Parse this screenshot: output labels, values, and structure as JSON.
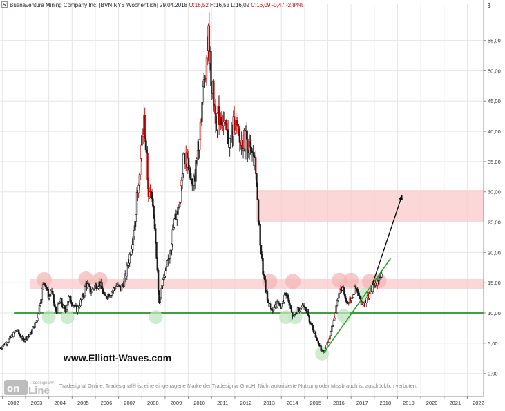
{
  "header": {
    "company": "Buenaventura Mining Company Inc.",
    "instrument": "[BVN NYS  Wöchentlich]",
    "date": "29.04.2018",
    "o_label": "O:",
    "o_value": "16,52",
    "h_label": "H:",
    "h_value": "16,53",
    "l_label": "L:",
    "l_value": "16,02",
    "c_label": "C:",
    "c_value": "16,09",
    "change": "-0,47",
    "change_pct": "-2,84%"
  },
  "watermark": {
    "url": "www.Elliott-Waves.com",
    "logo_top": "Tradesignal®",
    "logo_on": "on",
    "logo_line": "Line",
    "copyright": "Tradesignal Online. Tradesignal® ist eine eingetragene Marke der Tradesignal GmbH. Nicht autorisierte Nutzung oder Missbrauch ist ausdrücklich verboten."
  },
  "colors": {
    "candle": "#1a1a1a",
    "candle_highlight": "#b80000",
    "zone_fill": "#f9c9c9",
    "support_line": "#008000",
    "trendline": "#2aa52a",
    "marker_red": "#f4b4b4",
    "marker_green": "#bfe5bf",
    "arrow": "#000000",
    "text_red": "#d40000"
  },
  "chart_data": {
    "type": "candlestick",
    "title": "Buenaventura Mining Company Inc.",
    "currency_label": "$",
    "xlabel": "",
    "ylabel": "",
    "x_range": [
      2001.9,
      2022.7
    ],
    "ylim": [
      -3.8,
      61
    ],
    "grid": true,
    "y_ticks": [
      0,
      5,
      10,
      15,
      20,
      25,
      30,
      35,
      40,
      45,
      50,
      55
    ],
    "y_tick_labels": [
      "0,00",
      "5,00",
      "10,00",
      "15,00",
      "20,00",
      "25,00",
      "30,00",
      "35,00",
      "40,00",
      "45,00",
      "50,00",
      "55,00"
    ],
    "x_ticks": [
      2002,
      2003,
      2004,
      2005,
      2006,
      2007,
      2008,
      2009,
      2010,
      2011,
      2012,
      2013,
      2014,
      2015,
      2016,
      2017,
      2018,
      2019,
      2020,
      2021,
      2022
    ],
    "x_tick_labels": [
      "2002",
      "2003",
      "2004",
      "2005",
      "2006",
      "2007",
      "2008",
      "2009",
      "2010",
      "2011",
      "2012",
      "2013",
      "2014",
      "2015",
      "2016",
      "2017",
      "2018",
      "2019",
      "2020",
      "2021",
      "2022"
    ],
    "price_path": [
      [
        2001.9,
        4.2
      ],
      [
        2002.3,
        5.6
      ],
      [
        2002.6,
        7.2
      ],
      [
        2002.9,
        5.5
      ],
      [
        2003.2,
        6.5
      ],
      [
        2003.5,
        9.0
      ],
      [
        2003.7,
        13.5
      ],
      [
        2003.8,
        15.5
      ],
      [
        2004.0,
        12.5
      ],
      [
        2004.1,
        13.8
      ],
      [
        2004.3,
        10.0
      ],
      [
        2004.5,
        12.0
      ],
      [
        2004.7,
        10.2
      ],
      [
        2004.85,
        12.5
      ],
      [
        2005.0,
        11.8
      ],
      [
        2005.2,
        10.5
      ],
      [
        2005.5,
        13.0
      ],
      [
        2005.6,
        15.0
      ],
      [
        2005.8,
        13.5
      ],
      [
        2006.0,
        14.5
      ],
      [
        2006.2,
        15.0
      ],
      [
        2006.4,
        12.5
      ],
      [
        2006.7,
        13.5
      ],
      [
        2006.9,
        14.5
      ],
      [
        2007.1,
        14.0
      ],
      [
        2007.3,
        16.0
      ],
      [
        2007.5,
        20.0
      ],
      [
        2007.7,
        25.0
      ],
      [
        2007.85,
        32.0
      ],
      [
        2008.0,
        38.0
      ],
      [
        2008.1,
        42.0
      ],
      [
        2008.3,
        29.0
      ],
      [
        2008.45,
        30.0
      ],
      [
        2008.6,
        22.0
      ],
      [
        2008.75,
        11.0
      ],
      [
        2008.85,
        15.0
      ],
      [
        2009.0,
        16.0
      ],
      [
        2009.2,
        20.0
      ],
      [
        2009.4,
        25.0
      ],
      [
        2009.6,
        28.0
      ],
      [
        2009.8,
        36.0
      ],
      [
        2010.0,
        35.0
      ],
      [
        2010.2,
        30.0
      ],
      [
        2010.4,
        37.0
      ],
      [
        2010.6,
        45.0
      ],
      [
        2010.8,
        53.0
      ],
      [
        2010.85,
        56.0
      ],
      [
        2011.0,
        48.0
      ],
      [
        2011.2,
        42.0
      ],
      [
        2011.4,
        43.0
      ],
      [
        2011.6,
        40.0
      ],
      [
        2011.8,
        38.0
      ],
      [
        2012.0,
        42.0
      ],
      [
        2012.2,
        38.0
      ],
      [
        2012.5,
        39.0
      ],
      [
        2012.7,
        36.0
      ],
      [
        2012.9,
        34.0
      ],
      [
        2013.0,
        26.0
      ],
      [
        2013.2,
        17.0
      ],
      [
        2013.4,
        12.0
      ],
      [
        2013.6,
        10.5
      ],
      [
        2013.8,
        11.5
      ],
      [
        2014.0,
        11.0
      ],
      [
        2014.2,
        13.5
      ],
      [
        2014.4,
        10.5
      ],
      [
        2014.5,
        9.0
      ],
      [
        2014.7,
        10.5
      ],
      [
        2015.0,
        11.5
      ],
      [
        2015.2,
        9.0
      ],
      [
        2015.4,
        7.0
      ],
      [
        2015.6,
        5.0
      ],
      [
        2015.8,
        3.3
      ],
      [
        2016.0,
        5.0
      ],
      [
        2016.2,
        8.0
      ],
      [
        2016.35,
        10.5
      ],
      [
        2016.5,
        13.5
      ],
      [
        2016.65,
        14.5
      ],
      [
        2016.8,
        11.5
      ],
      [
        2017.0,
        12.5
      ],
      [
        2017.2,
        14.0
      ],
      [
        2017.4,
        12.0
      ],
      [
        2017.6,
        11.5
      ],
      [
        2017.8,
        13.5
      ],
      [
        2018.0,
        14.5
      ],
      [
        2018.2,
        16.0
      ],
      [
        2018.33,
        16.1
      ]
    ],
    "zones": [
      {
        "y_from": 25.0,
        "y_to": 30.3,
        "x_from": 2012.9,
        "x_to": 2022.7
      },
      {
        "y_from": 14.0,
        "y_to": 15.6,
        "x_from": 2003.2,
        "x_to": 2022.7
      }
    ],
    "support_line": {
      "y": 10.0,
      "x_from": 2002.5,
      "x_to": 2022.7
    },
    "trendline": {
      "points": [
        [
          2015.8,
          3.3
        ],
        [
          2018.7,
          19.0
        ]
      ]
    },
    "projection_arrow": {
      "points": [
        [
          2017.9,
          14.5
        ],
        [
          2019.2,
          29.5
        ]
      ]
    },
    "resistance_markers": [
      {
        "x": 2003.8,
        "y": 15.5
      },
      {
        "x": 2005.6,
        "y": 15.6
      },
      {
        "x": 2006.2,
        "y": 15.5
      },
      {
        "x": 2013.5,
        "y": 15.2
      },
      {
        "x": 2014.5,
        "y": 15.2
      },
      {
        "x": 2016.5,
        "y": 15.4
      },
      {
        "x": 2017.0,
        "y": 15.4
      },
      {
        "x": 2017.8,
        "y": 15.2
      },
      {
        "x": 2018.2,
        "y": 15.3
      }
    ],
    "support_markers": [
      {
        "x": 2004.0,
        "y": 9.3
      },
      {
        "x": 2004.8,
        "y": 9.3
      },
      {
        "x": 2008.6,
        "y": 9.3
      },
      {
        "x": 2014.2,
        "y": 9.3
      },
      {
        "x": 2014.6,
        "y": 9.3
      },
      {
        "x": 2015.75,
        "y": 3.3
      },
      {
        "x": 2016.7,
        "y": 9.5
      },
      {
        "x": 2017.6,
        "y": 13.0
      }
    ]
  }
}
